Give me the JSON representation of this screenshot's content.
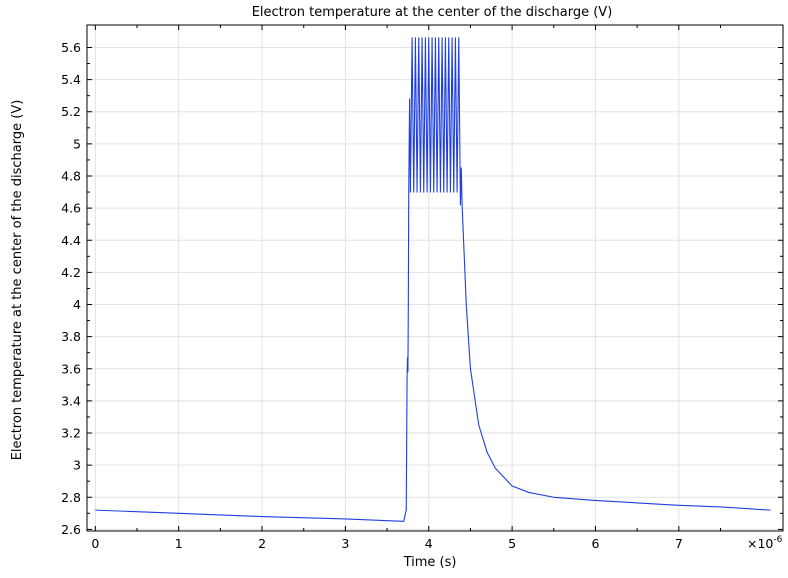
{
  "chart_data": {
    "type": "line",
    "title": "Electron temperature at the center of the discharge (V)",
    "xlabel": "Time (s)",
    "ylabel": "Electron temperature at the center of the discharge (V)",
    "x_multiplier": "×10",
    "x_multiplier_exp": "-6",
    "xlim": [
      -0.1,
      8.25
    ],
    "ylim": [
      2.59,
      5.74
    ],
    "grid": true,
    "legend": "none",
    "x_ticks": [
      0,
      1,
      2,
      3,
      4,
      5,
      6,
      7
    ],
    "x_tick_labels": [
      "0",
      "1",
      "2",
      "3",
      "4",
      "5",
      "6",
      "7"
    ],
    "y_ticks": [
      2.6,
      2.8,
      3,
      3.2,
      3.4,
      3.6,
      3.8,
      4,
      4.2,
      4.4,
      4.6,
      4.8,
      5,
      5.2,
      5.4,
      5.6
    ],
    "y_tick_labels": [
      "2.6",
      "2.8",
      "3",
      "3.2",
      "3.4",
      "3.6",
      "3.8",
      "4",
      "4.2",
      "4.4",
      "4.6",
      "4.8",
      "5",
      "5.2",
      "5.4",
      "5.6"
    ],
    "series": [
      {
        "color": "#1f3fe0",
        "x": [
          0,
          1,
          2,
          3,
          3.7,
          3.72,
          3.73,
          3.74,
          3.745,
          3.75,
          3.755,
          3.76,
          3.77,
          3.78,
          3.8,
          3.82,
          3.84,
          3.86,
          3.88,
          3.9,
          3.92,
          3.94,
          3.96,
          3.98,
          4.0,
          4.02,
          4.04,
          4.06,
          4.08,
          4.1,
          4.12,
          4.14,
          4.16,
          4.18,
          4.2,
          4.22,
          4.24,
          4.26,
          4.28,
          4.3,
          4.32,
          4.34,
          4.36,
          4.38,
          4.39,
          4.4,
          4.45,
          4.5,
          4.6,
          4.7,
          4.8,
          5.0,
          5.2,
          5.5,
          6.0,
          6.5,
          7.0,
          7.5,
          8.1
        ],
        "y": [
          2.72,
          2.7,
          2.68,
          2.665,
          2.65,
          2.7,
          2.72,
          3.55,
          3.67,
          3.58,
          4.0,
          4.7,
          5.28,
          4.7,
          5.66,
          4.7,
          5.66,
          4.7,
          5.66,
          4.7,
          5.66,
          4.7,
          5.66,
          4.7,
          5.66,
          4.7,
          5.66,
          4.7,
          5.66,
          4.7,
          5.66,
          4.7,
          5.66,
          4.7,
          5.66,
          4.7,
          5.66,
          4.7,
          5.66,
          4.7,
          5.66,
          4.7,
          5.66,
          4.62,
          4.85,
          4.62,
          4.0,
          3.6,
          3.25,
          3.08,
          2.98,
          2.87,
          2.83,
          2.8,
          2.78,
          2.765,
          2.75,
          2.74,
          2.72
        ]
      }
    ]
  }
}
